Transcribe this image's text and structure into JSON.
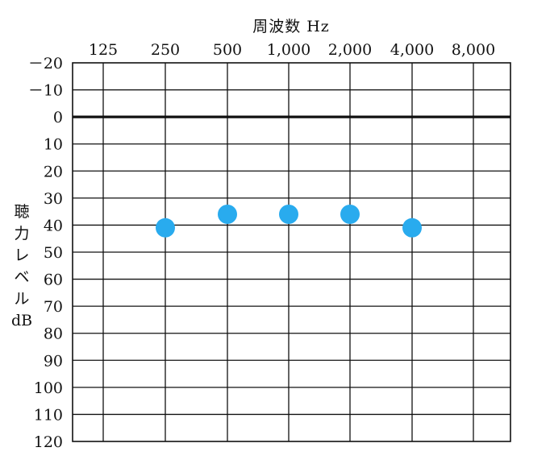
{
  "chart_data": {
    "type": "scatter",
    "title": "",
    "xlabel": "周波数 Hz",
    "ylabel": "聴力レベル dB",
    "ylabel_chars": [
      "聴",
      "力",
      "レ",
      "ベ",
      "ル",
      "dB"
    ],
    "x_categories": [
      "125",
      "250",
      "500",
      "1,000",
      "2,000",
      "4,000",
      "8,000"
    ],
    "y_ticks": [
      "－20",
      "－10",
      "0",
      "10",
      "20",
      "30",
      "40",
      "50",
      "60",
      "70",
      "80",
      "90",
      "100",
      "110",
      "120"
    ],
    "y_tick_values": [
      -20,
      -10,
      0,
      10,
      20,
      30,
      40,
      50,
      60,
      70,
      80,
      90,
      100,
      110,
      120
    ],
    "ylim": [
      -20,
      120
    ],
    "y_inverted": true,
    "grid": true,
    "reference_line": 0,
    "series": [
      {
        "x": [
          "250",
          "500",
          "1,000",
          "2,000",
          "4,000"
        ],
        "values": [
          41,
          36,
          36,
          36,
          41
        ],
        "color": "#29abee",
        "marker": "circle"
      }
    ]
  }
}
